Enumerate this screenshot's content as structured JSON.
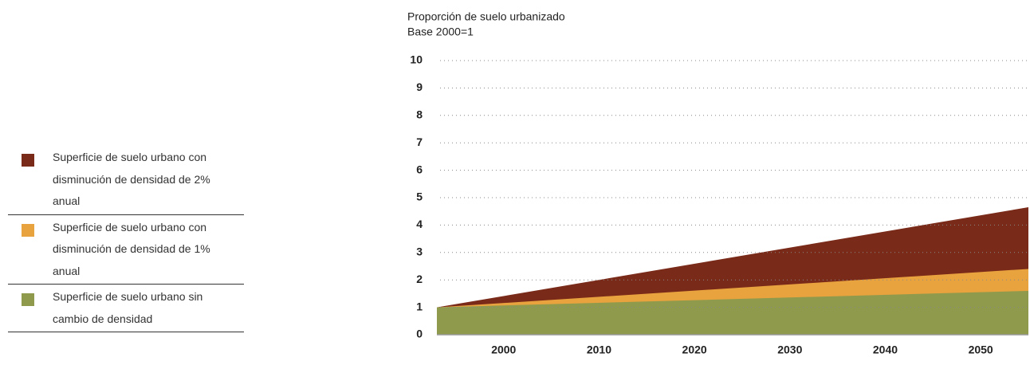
{
  "chart_data": {
    "type": "area",
    "title": "Proporción de suelo urbanizado",
    "subtitle": "Base 2000=1",
    "x": [
      1993,
      2055
    ],
    "series": [
      {
        "name": "Superficie de suelo urbano con disminución de densidad de 2% anual",
        "color": "#7a2a19",
        "values": [
          1,
          4.65
        ]
      },
      {
        "name": "Superficie de suelo urbano con disminución de densidad de 1% anual",
        "color": "#e8a23e",
        "values": [
          1,
          2.4
        ]
      },
      {
        "name": "Superficie de suelo urbano sin cambio de densidad",
        "color": "#8f9a4c",
        "values": [
          1,
          1.6
        ]
      }
    ],
    "xlim": [
      1993,
      2055
    ],
    "xticks": [
      2000,
      2010,
      2020,
      2030,
      2040,
      2050
    ],
    "ylim": [
      0,
      10
    ],
    "yticks": [
      0,
      1,
      2,
      3,
      4,
      5,
      6,
      7,
      8,
      9,
      10
    ],
    "grid": true,
    "legend": "left"
  }
}
